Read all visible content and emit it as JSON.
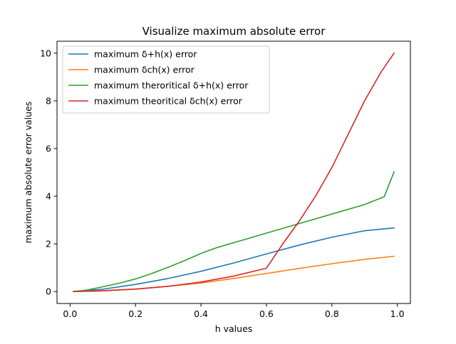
{
  "chart_data": {
    "type": "line",
    "title": "Visualize maximum absolute error",
    "xlabel": "h values",
    "ylabel": "maximum absolute error values",
    "xlim": [
      -0.04,
      1.04
    ],
    "ylim": [
      -0.5,
      10.5
    ],
    "xticks": [
      0.0,
      0.2,
      0.4,
      0.6,
      0.8,
      1.0
    ],
    "xtick_labels": [
      "0.0",
      "0.2",
      "0.4",
      "0.6",
      "0.8",
      "1.0"
    ],
    "yticks": [
      0,
      2,
      4,
      6,
      8,
      10
    ],
    "ytick_labels": [
      "0",
      "2",
      "4",
      "6",
      "8",
      "10"
    ],
    "grid": false,
    "legend_position": "upper-left",
    "series": [
      {
        "name": "maximum δ+h(x) error",
        "color": "#1f77b4",
        "x": [
          0.01,
          0.1,
          0.2,
          0.3,
          0.4,
          0.5,
          0.6,
          0.7,
          0.8,
          0.9,
          0.99
        ],
        "y": [
          0.0,
          0.1,
          0.3,
          0.55,
          0.85,
          1.2,
          1.58,
          1.95,
          2.28,
          2.55,
          2.67
        ]
      },
      {
        "name": "maximum δch(x) error",
        "color": "#ff7f0e",
        "x": [
          0.01,
          0.1,
          0.2,
          0.3,
          0.4,
          0.5,
          0.6,
          0.7,
          0.8,
          0.9,
          0.99
        ],
        "y": [
          0.0,
          0.04,
          0.11,
          0.22,
          0.36,
          0.55,
          0.76,
          0.97,
          1.17,
          1.35,
          1.48
        ]
      },
      {
        "name": "maximum theroritical δ+h(x) error",
        "color": "#2ca02c",
        "x": [
          0.01,
          0.05,
          0.1,
          0.15,
          0.2,
          0.25,
          0.3,
          0.35,
          0.4,
          0.45,
          0.5,
          0.6,
          0.7,
          0.8,
          0.9,
          0.96,
          0.99
        ],
        "y": [
          0.0,
          0.06,
          0.2,
          0.35,
          0.53,
          0.76,
          1.02,
          1.3,
          1.6,
          1.85,
          2.05,
          2.45,
          2.85,
          3.25,
          3.65,
          3.98,
          5.02
        ]
      },
      {
        "name": "maximum theoritical δch(x) error",
        "color": "#d62728",
        "x": [
          0.01,
          0.1,
          0.2,
          0.3,
          0.4,
          0.5,
          0.6,
          0.65,
          0.7,
          0.75,
          0.8,
          0.85,
          0.9,
          0.95,
          0.99
        ],
        "y": [
          0.0,
          0.03,
          0.1,
          0.22,
          0.4,
          0.65,
          0.98,
          2.0,
          2.95,
          4.0,
          5.2,
          6.6,
          8.0,
          9.2,
          10.0
        ]
      }
    ]
  }
}
